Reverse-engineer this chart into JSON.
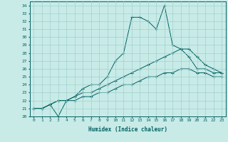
{
  "x": [
    0,
    1,
    2,
    3,
    4,
    5,
    6,
    7,
    8,
    9,
    10,
    11,
    12,
    13,
    14,
    15,
    16,
    17,
    18,
    19,
    20,
    21,
    22,
    23
  ],
  "line1": [
    21.0,
    21.0,
    21.5,
    20.0,
    22.0,
    22.5,
    23.5,
    24.0,
    24.0,
    25.0,
    27.0,
    28.0,
    32.5,
    32.5,
    32.0,
    31.0,
    34.0,
    29.0,
    28.5,
    27.5,
    26.0,
    26.0,
    25.5,
    25.5
  ],
  "line2": [
    21.0,
    21.0,
    21.5,
    22.0,
    22.0,
    22.5,
    23.0,
    23.0,
    23.5,
    24.0,
    24.5,
    25.0,
    25.5,
    26.0,
    26.5,
    27.0,
    27.5,
    28.0,
    28.5,
    28.5,
    27.5,
    26.5,
    26.0,
    25.5
  ],
  "line3": [
    21.0,
    21.0,
    21.5,
    22.0,
    22.0,
    22.0,
    22.5,
    22.5,
    23.0,
    23.0,
    23.5,
    24.0,
    24.0,
    24.5,
    25.0,
    25.0,
    25.5,
    25.5,
    26.0,
    26.0,
    25.5,
    25.5,
    25.0,
    25.0
  ],
  "line_color": "#006060",
  "bg_color": "#c8ebe8",
  "grid_color": "#a0d0cc",
  "xlabel": "Humidex (Indice chaleur)",
  "ylim": [
    20,
    34.5
  ],
  "xlim": [
    -0.5,
    23.5
  ],
  "yticks": [
    20,
    21,
    22,
    23,
    24,
    25,
    26,
    27,
    28,
    29,
    30,
    31,
    32,
    33,
    34
  ],
  "xticks": [
    0,
    1,
    2,
    3,
    4,
    5,
    6,
    7,
    8,
    9,
    10,
    11,
    12,
    13,
    14,
    15,
    16,
    17,
    18,
    19,
    20,
    21,
    22,
    23
  ]
}
